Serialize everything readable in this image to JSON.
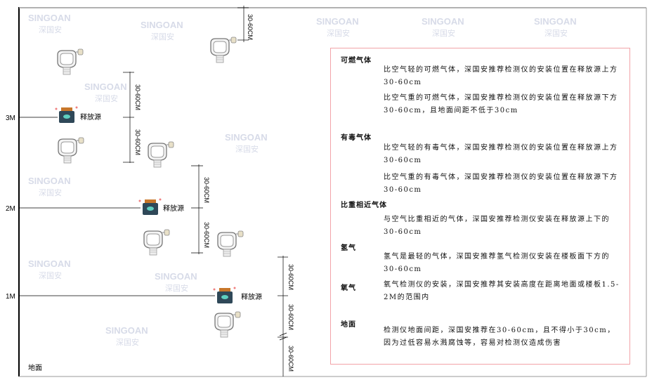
{
  "watermark": {
    "brand": "SINGOAN",
    "cn": "深国安"
  },
  "levels": [
    {
      "label": "3M"
    },
    {
      "label": "2M"
    },
    {
      "label": "1M"
    }
  ],
  "source_label": "释放源",
  "dimension_label": "30-60CM",
  "ground_label": "地面",
  "colors": {
    "box_border": "#f2a3a8",
    "source_body": "#2f4858",
    "source_accent": "#5fd0c0",
    "source_cap": "#c8772a"
  },
  "legend": {
    "sections": [
      {
        "title": "可燃气体",
        "paragraphs": [
          "比空气轻的可燃气体，深国安推荐检测仪的安装位置在释放源上方30-60cm",
          "比空气重的可燃气体，深国安推荐检测仪的安装位置在释放源下方30-60cm，且地面间距不低于30cm"
        ]
      },
      {
        "title": "有毒气体",
        "paragraphs": [
          "比空气轻的有毒气体，深国安推荐检测仪的安装位置在释放源上方30-60cm",
          "比空气重的有毒气体，深国安推荐检测仪的安装位置在释放源下方30-60cm"
        ]
      },
      {
        "title": "比重相近气体",
        "paragraphs": [
          "与空气比重相近的气体，深国安推荐检测仪安装在释放源上下的30-60cm"
        ]
      },
      {
        "title": "氢气",
        "paragraphs": [
          "氢气是最轻的气体，深国安推荐氢气检测仪安装在楼板面下方的30-60cm"
        ]
      },
      {
        "title": "氧气",
        "paragraphs": [
          "氧气检测仪的安装，深国安推荐其安装高度在距离地面或楼板1.5-2M的范围内"
        ]
      },
      {
        "title": "地面",
        "paragraphs": [
          "检测仪地面间距，深国安推荐在30-60cm，且不得小于30cm，因为过低容易水溅腐蚀等，容易对检测仪造成伤害"
        ]
      }
    ]
  }
}
